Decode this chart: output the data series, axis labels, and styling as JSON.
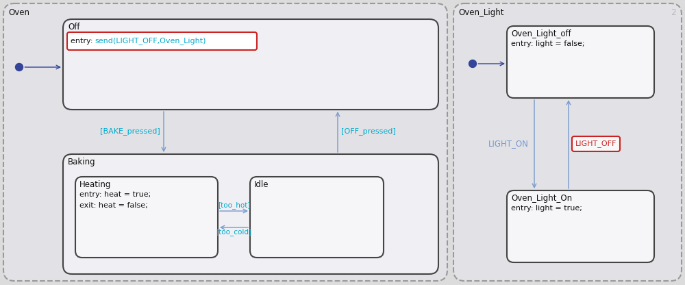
{
  "bg_color": "#dcdcdc",
  "panel_fill": "#e8e8e8",
  "state_fill": "#f2f2f4",
  "state_border": "#333333",
  "dashed_border": "#999999",
  "arrow_color": "#7799cc",
  "cyan_text": "#00aacc",
  "red_border": "#cc2222",
  "red_text": "#cc2222",
  "gray_text": "#bbbbbb",
  "dark_text": "#111111",
  "initial_dot": "#334499",
  "oven_label": "Oven",
  "oven_light_label": "Oven_Light",
  "oven_light_number": "2",
  "off_label": "Off",
  "off_entry_prefix": "entry: ",
  "off_entry_cyan": "send(LIGHT_OFF,Oven_Light)",
  "baking_label": "Baking",
  "heating_label": "Heating",
  "heating_entry": "entry: heat = true;",
  "heating_exit": "exit: heat = false;",
  "idle_label": "Idle",
  "bake_pressed": "[BAKE_pressed]",
  "off_pressed": "[OFF_pressed]",
  "too_hot": "[too_hot]",
  "too_cold": "[too_cold]",
  "oven_light_off_label": "Oven_Light_off",
  "oven_light_off_entry": "entry: light = false;",
  "oven_light_on_label": "Oven_Light_On",
  "oven_light_on_entry": "entry: light = true;",
  "light_on_label": "LIGHT_ON",
  "light_off_label": "LIGHT_OFF"
}
